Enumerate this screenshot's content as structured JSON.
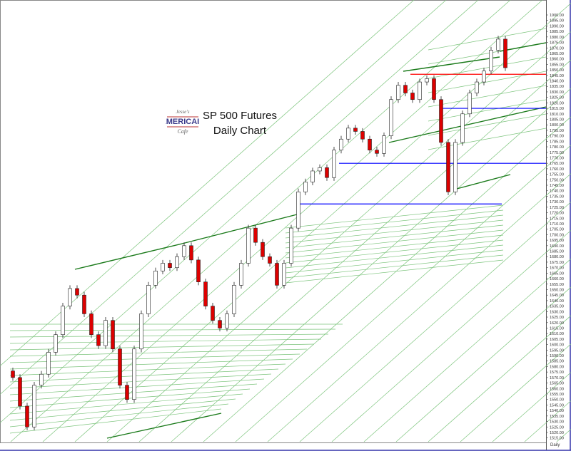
{
  "chart_data": {
    "type": "candlestick",
    "title": "SP 500 Futures",
    "subtitle": "Daily Chart",
    "timeframe_label": "Daily",
    "logo_text": "Jesse's AMERICAIN Cafe",
    "ylim": [
      1513,
      1903
    ],
    "yticks": [
      "1900.00",
      "1895.00",
      "1890.00",
      "1885.00",
      "1880.00",
      "1875.00",
      "1870.00",
      "1865.00",
      "1860.00",
      "1855.00",
      "1850.00",
      "1845.00",
      "1840.00",
      "1835.00",
      "1830.00",
      "1825.00",
      "1820.00",
      "1815.00",
      "1810.00",
      "1805.00",
      "1800.00",
      "1795.00",
      "1790.00",
      "1785.00",
      "1780.00",
      "1775.00",
      "1770.00",
      "1765.00",
      "1760.00",
      "1755.00",
      "1750.00",
      "1745.00",
      "1740.00",
      "1735.00",
      "1730.00",
      "1725.00",
      "1720.00",
      "1715.00",
      "1710.00",
      "1705.00",
      "1700.00",
      "1695.00",
      "1690.00",
      "1685.00",
      "1680.00",
      "1675.00",
      "1670.00",
      "1665.00",
      "1660.00",
      "1655.00",
      "1650.00",
      "1645.00",
      "1640.00",
      "1635.00",
      "1630.00",
      "1625.00",
      "1620.00",
      "1615.00",
      "1610.00",
      "1605.00",
      "1600.00",
      "1595.00",
      "1590.00",
      "1585.00",
      "1580.00",
      "1575.00",
      "1570.00",
      "1565.00",
      "1560.00",
      "1555.00",
      "1550.00",
      "1545.00",
      "1540.00",
      "1535.00",
      "1530.00",
      "1525.00",
      "1520.00",
      "1515.00"
    ],
    "closes": [
      1570,
      1544,
      1525,
      1563,
      1573,
      1593,
      1609,
      1635,
      1651,
      1645,
      1628,
      1609,
      1599,
      1622,
      1596,
      1563,
      1550,
      1596,
      1628,
      1654,
      1667,
      1674,
      1670,
      1680,
      1690,
      1677,
      1657,
      1635,
      1622,
      1615,
      1628,
      1654,
      1674,
      1706,
      1693,
      1680,
      1674,
      1654,
      1674,
      1706,
      1739,
      1748,
      1758,
      1761,
      1752,
      1777,
      1787,
      1797,
      1794,
      1787,
      1777,
      1774,
      1790,
      1823,
      1836,
      1829,
      1823,
      1839,
      1842,
      1823,
      1784,
      1739,
      1784,
      1810,
      1829,
      1839,
      1849,
      1868,
      1878,
      1852
    ],
    "horizontal_levels": [
      {
        "price": 1846,
        "color": "#ff0000"
      },
      {
        "price": 1815,
        "color": "#0000ff"
      },
      {
        "price": 1765,
        "color": "#0000ff"
      },
      {
        "price": 1728,
        "color": "#0000ff"
      }
    ],
    "colors": {
      "up": "#ffffff",
      "down": "#dd0000",
      "fan": "#7cc47c",
      "trend": "#1a7a1a",
      "axis_border": "#3333aa"
    }
  }
}
